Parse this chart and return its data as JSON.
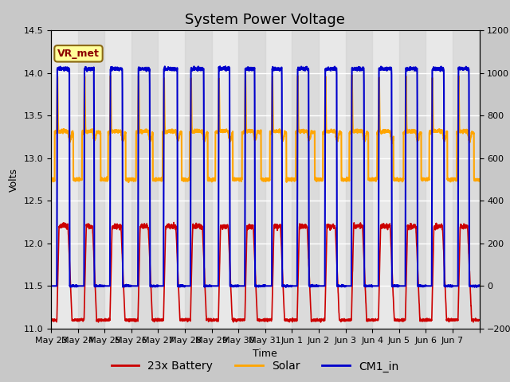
{
  "title": "System Power Voltage",
  "xlabel": "Time",
  "ylabel_left": "Volts",
  "ylim_left": [
    11.0,
    14.5
  ],
  "ylim_right": [
    -200,
    1200
  ],
  "fig_bg": "#c8c8c8",
  "plot_bg": "#e8e8e8",
  "grid_color": "white",
  "title_fontsize": 13,
  "label_fontsize": 9,
  "tick_fontsize": 8,
  "legend_entries": [
    "23x Battery",
    "Solar",
    "CM1_in"
  ],
  "legend_colors": [
    "#cc0000",
    "#ffa500",
    "#0000cc"
  ],
  "annotation_text": "VR_met",
  "annotation_color": "#8B0000",
  "annotation_bg": "#ffff99",
  "annotation_border": "#8B6914",
  "x_tick_labels": [
    "May 23",
    "May 24",
    "May 25",
    "May 26",
    "May 27",
    "May 28",
    "May 29",
    "May 30",
    "May 31",
    "Jun 1",
    "Jun 2",
    "Jun 3",
    "Jun 4",
    "Jun 5",
    "Jun 6",
    "Jun 7"
  ],
  "num_days": 16,
  "battery_base": 11.1,
  "battery_peak": 12.2,
  "solar_base": 13.3,
  "solar_peak": 13.95,
  "cm1_base": 11.5,
  "cm1_peak": 14.05,
  "right_axis_ticks": [
    -200,
    0,
    200,
    400,
    600,
    800,
    1000,
    1200
  ]
}
